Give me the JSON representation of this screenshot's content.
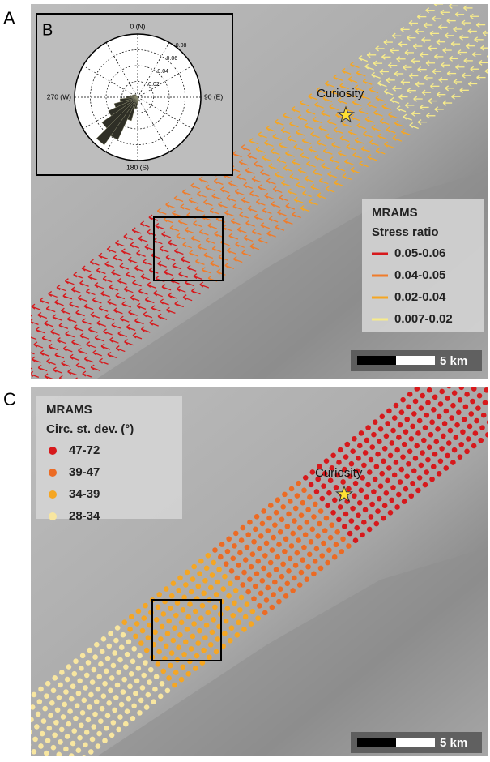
{
  "panels": [
    {
      "letter": "A",
      "landmark": "Curiosity",
      "legend": {
        "title": "MRAMS",
        "subtitle": "Stress ratio",
        "items": [
          {
            "label": "0.05-0.06",
            "color": "#d7191c"
          },
          {
            "label": "0.04-0.05",
            "color": "#f07c2a"
          },
          {
            "label": "0.02-0.04",
            "color": "#f5a623"
          },
          {
            "label": "0.007-0.02",
            "color": "#f7eb8a"
          }
        ]
      },
      "scale": "5 km"
    },
    {
      "letter": "C",
      "landmark": "Curiosity",
      "legend": {
        "title": "MRAMS",
        "subtitle": "Circ. st. dev. (°)",
        "items": [
          {
            "label": "47-72",
            "color": "#d7191c"
          },
          {
            "label": "39-47",
            "color": "#ec6b24"
          },
          {
            "label": "34-39",
            "color": "#f5a623"
          },
          {
            "label": "28-34",
            "color": "#f8e6a0"
          }
        ]
      },
      "scale": "5 km"
    }
  ],
  "inset": {
    "letter": "B",
    "directions": [
      "0 (N)",
      "90 (E)",
      "180 (S)",
      "270 (W)"
    ],
    "rings": [
      "0.02",
      "0.04",
      "0.06",
      "0.08"
    ]
  }
}
